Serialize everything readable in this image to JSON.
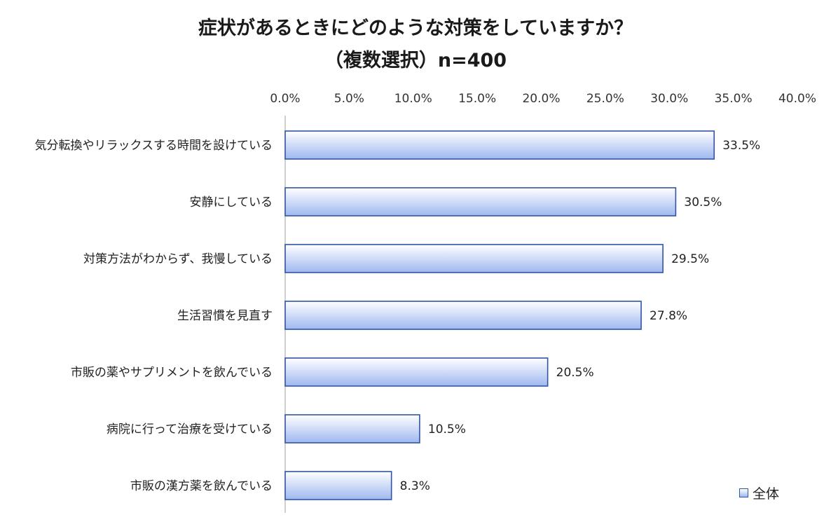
{
  "chart_data": {
    "type": "bar",
    "orientation": "horizontal",
    "title": "症状があるときにどのような対策をしていますか？",
    "subtitle": "（複数選択）n=400",
    "categories": [
      "気分転換やリラックスする時間を設けている",
      "安静にしている",
      "対策方法がわからず、我慢している",
      "生活習慣を見直す",
      "市販の薬やサプリメントを飲んでいる",
      "病院に行って治療を受けている",
      "市販の漢方薬を飲んでいる"
    ],
    "series": [
      {
        "name": "全体",
        "values": [
          33.5,
          30.5,
          29.5,
          27.8,
          20.5,
          10.5,
          8.3
        ],
        "value_labels": [
          "33.5%",
          "30.5%",
          "29.5%",
          "27.8%",
          "20.5%",
          "10.5%",
          "8.3%"
        ]
      }
    ],
    "xlim": [
      0,
      40
    ],
    "xticks": [
      0,
      5,
      10,
      15,
      20,
      25,
      30,
      35,
      40
    ],
    "xtick_labels": [
      "0.0%",
      "5.0%",
      "10.0%",
      "15.0%",
      "20.0%",
      "25.0%",
      "30.0%",
      "35.0%",
      "40.0%"
    ],
    "axis_position": "top",
    "grid": false,
    "legend_position": "bottom-right",
    "colors": {
      "bar_fill_top": "#ffffff",
      "bar_fill_bottom": "#9fb8f0",
      "bar_stroke": "#2f55a4",
      "axis": "#bfbfbf"
    }
  }
}
